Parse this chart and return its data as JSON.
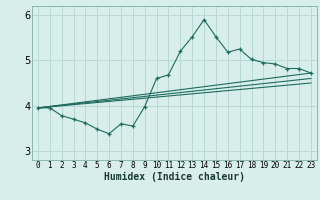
{
  "xlabel": "Humidex (Indice chaleur)",
  "bg_color": "#d8eeeb",
  "grid_color": "#b8d8d4",
  "line_color": "#1e6b5e",
  "xlim": [
    -0.5,
    23.5
  ],
  "ylim": [
    2.8,
    6.2
  ],
  "yticks": [
    3,
    4,
    5,
    6
  ],
  "xticks": [
    0,
    1,
    2,
    3,
    4,
    5,
    6,
    7,
    8,
    9,
    10,
    11,
    12,
    13,
    14,
    15,
    16,
    17,
    18,
    19,
    20,
    21,
    22,
    23
  ],
  "series_x": [
    0,
    1,
    2,
    3,
    4,
    5,
    6,
    7,
    8,
    9,
    10,
    11,
    12,
    13,
    14,
    15,
    16,
    17,
    18,
    19,
    20,
    21,
    22,
    23
  ],
  "series_y": [
    3.95,
    3.95,
    3.78,
    3.7,
    3.62,
    3.48,
    3.38,
    3.6,
    3.55,
    3.98,
    4.6,
    4.68,
    5.2,
    5.52,
    5.9,
    5.52,
    5.18,
    5.25,
    5.02,
    4.95,
    4.92,
    4.82,
    4.82,
    4.72
  ],
  "trend1_x": [
    0,
    23
  ],
  "trend1_y": [
    3.95,
    4.72
  ],
  "trend2_x": [
    0,
    23
  ],
  "trend2_y": [
    3.95,
    4.6
  ],
  "trend3_x": [
    0,
    23
  ],
  "trend3_y": [
    3.95,
    4.5
  ]
}
